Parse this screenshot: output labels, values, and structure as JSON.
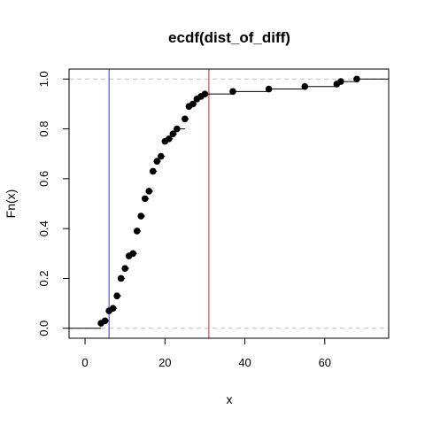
{
  "chart_data": {
    "type": "scatter",
    "title": "ecdf(dist_of_diff)",
    "xlabel": "x",
    "ylabel": "Fn(x)",
    "xlim": [
      -4,
      76
    ],
    "ylim": [
      -0.04,
      1.04
    ],
    "x_ticks": [
      0,
      20,
      40,
      60
    ],
    "y_ticks": [
      0.0,
      0.2,
      0.4,
      0.6,
      0.8,
      1.0
    ],
    "x_tick_labels": [
      "0",
      "20",
      "40",
      "60"
    ],
    "y_tick_labels": [
      "0.0",
      "0.2",
      "0.4",
      "0.6",
      "0.8",
      "1.0"
    ],
    "points": [
      {
        "x": 4,
        "y": 0.02
      },
      {
        "x": 5,
        "y": 0.03
      },
      {
        "x": 6,
        "y": 0.07
      },
      {
        "x": 7,
        "y": 0.08
      },
      {
        "x": 8,
        "y": 0.13
      },
      {
        "x": 9,
        "y": 0.2
      },
      {
        "x": 10,
        "y": 0.24
      },
      {
        "x": 11,
        "y": 0.29
      },
      {
        "x": 12,
        "y": 0.3
      },
      {
        "x": 13,
        "y": 0.39
      },
      {
        "x": 14,
        "y": 0.45
      },
      {
        "x": 15,
        "y": 0.52
      },
      {
        "x": 16,
        "y": 0.55
      },
      {
        "x": 17,
        "y": 0.63
      },
      {
        "x": 18,
        "y": 0.67
      },
      {
        "x": 19,
        "y": 0.69
      },
      {
        "x": 20,
        "y": 0.75
      },
      {
        "x": 21,
        "y": 0.76
      },
      {
        "x": 22,
        "y": 0.78
      },
      {
        "x": 23,
        "y": 0.8
      },
      {
        "x": 25,
        "y": 0.84
      },
      {
        "x": 26,
        "y": 0.89
      },
      {
        "x": 27,
        "y": 0.9
      },
      {
        "x": 28,
        "y": 0.92
      },
      {
        "x": 29,
        "y": 0.93
      },
      {
        "x": 30,
        "y": 0.94
      },
      {
        "x": 37,
        "y": 0.95
      },
      {
        "x": 46,
        "y": 0.96
      },
      {
        "x": 55,
        "y": 0.97
      },
      {
        "x": 63,
        "y": 0.98
      },
      {
        "x": 64,
        "y": 0.99
      },
      {
        "x": 68,
        "y": 1.0
      }
    ],
    "reference_lines": [
      {
        "orientation": "horizontal",
        "value": 0,
        "color": "#bfbfbf",
        "style": "dashed"
      },
      {
        "orientation": "horizontal",
        "value": 1,
        "color": "#bfbfbf",
        "style": "dashed"
      },
      {
        "orientation": "vertical",
        "value": 6,
        "color": "#3333cc",
        "style": "solid"
      },
      {
        "orientation": "vertical",
        "value": 31,
        "color": "#e02020",
        "style": "solid"
      }
    ],
    "grid": false
  }
}
